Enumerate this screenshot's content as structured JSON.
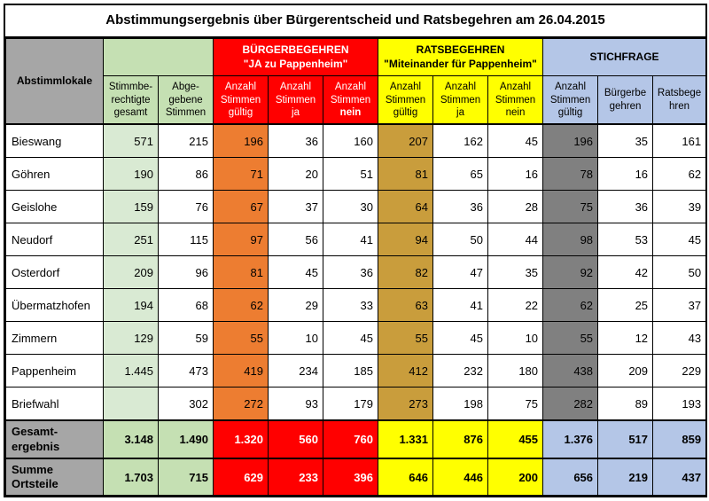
{
  "title": "Abstimmungsergebnis über Bürgerentscheid und Ratsbegehren am 26.04.2015",
  "groups": {
    "g0": "Abstimmlokale",
    "g2": "BÜRGERBEGEHREN<br>\"JA zu Pappenheim\"",
    "g3": "RATSBEGEHREN<br>\"Miteinander für Pappenheim\"",
    "g4": "STICHFRAGE"
  },
  "cols": {
    "c1": "Stimmbe-<br>rechtigte<br>gesamt",
    "c2": "Abge-<br>gebene<br>Stimmen",
    "c3": "Anzahl<br>Stimmen<br>gültig",
    "c4": "Anzahl<br>Stimmen<br>ja",
    "c5": "Anzahl<br>Stimmen<br><b>nein</b>",
    "c6": "Anzahl<br>Stimmen<br>gültig",
    "c7": "Anzahl<br>Stimmen<br>ja",
    "c8": "Anzahl<br>Stimmen<br>nein",
    "c9": "Anzahl<br>Stimmen<br>gültig",
    "c10": "Bürgerbe<br>gehren",
    "c11": "Ratsbege<br>hren"
  },
  "rows": [
    {
      "label": "Bieswang",
      "v": [
        "571",
        "215",
        "196",
        "36",
        "160",
        "207",
        "162",
        "45",
        "196",
        "35",
        "161"
      ]
    },
    {
      "label": "Göhren",
      "v": [
        "190",
        "86",
        "71",
        "20",
        "51",
        "81",
        "65",
        "16",
        "78",
        "16",
        "62"
      ]
    },
    {
      "label": "Geislohe",
      "v": [
        "159",
        "76",
        "67",
        "37",
        "30",
        "64",
        "36",
        "28",
        "75",
        "36",
        "39"
      ]
    },
    {
      "label": "Neudorf",
      "v": [
        "251",
        "115",
        "97",
        "56",
        "41",
        "94",
        "50",
        "44",
        "98",
        "53",
        "45"
      ]
    },
    {
      "label": "Osterdorf",
      "v": [
        "209",
        "96",
        "81",
        "45",
        "36",
        "82",
        "47",
        "35",
        "92",
        "42",
        "50"
      ]
    },
    {
      "label": "Übermatzhofen",
      "v": [
        "194",
        "68",
        "62",
        "29",
        "33",
        "63",
        "41",
        "22",
        "62",
        "25",
        "37"
      ]
    },
    {
      "label": "Zimmern",
      "v": [
        "129",
        "59",
        "55",
        "10",
        "45",
        "55",
        "45",
        "10",
        "55",
        "12",
        "43"
      ]
    },
    {
      "label": "Pappenheim",
      "v": [
        "1.445",
        "473",
        "419",
        "234",
        "185",
        "412",
        "232",
        "180",
        "438",
        "209",
        "229"
      ]
    },
    {
      "label": "Briefwahl",
      "v": [
        "",
        "302",
        "272",
        "93",
        "179",
        "273",
        "198",
        "75",
        "282",
        "89",
        "193"
      ]
    }
  ],
  "total1": {
    "label": "Gesamt-<br>ergebnis",
    "v": [
      "3.148",
      "1.490",
      "1.320",
      "560",
      "760",
      "1.331",
      "876",
      "455",
      "1.376",
      "517",
      "859"
    ]
  },
  "total2": {
    "label": "Summe<br>Ortsteile",
    "v": [
      "1.703",
      "715",
      "629",
      "233",
      "396",
      "646",
      "446",
      "200",
      "656",
      "219",
      "437"
    ]
  },
  "style": {
    "colwidths": [
      "110",
      "62",
      "62",
      "62",
      "62",
      "62",
      "62",
      "62",
      "62",
      "62",
      "62",
      "60"
    ],
    "grp_bg": [
      "bg-gray",
      "bg-green",
      "bg-red",
      "bg-yellow",
      "bg-blue"
    ],
    "col_bg": [
      "bg-green",
      "bg-green",
      "bg-red",
      "bg-red",
      "bg-red",
      "bg-yellow",
      "bg-yellow",
      "bg-yellow",
      "bg-blue",
      "bg-blue",
      "bg-blue"
    ],
    "data_bg": [
      "bg-greenlt",
      "",
      "bg-orange",
      "",
      "",
      "bg-gold",
      "",
      "",
      "bg-darkgray",
      "",
      ""
    ],
    "total1_bg": [
      "bg-green",
      "bg-green",
      "bg-red",
      "bg-red",
      "bg-red",
      "bg-yellow",
      "bg-yellow",
      "bg-yellow",
      "bg-blue",
      "bg-blue",
      "bg-blue"
    ],
    "total2_bg": [
      "bg-green",
      "bg-green",
      "bg-red",
      "bg-red",
      "bg-red",
      "bg-yellow",
      "bg-yellow",
      "bg-yellow",
      "bg-blue",
      "bg-blue",
      "bg-blue"
    ]
  }
}
